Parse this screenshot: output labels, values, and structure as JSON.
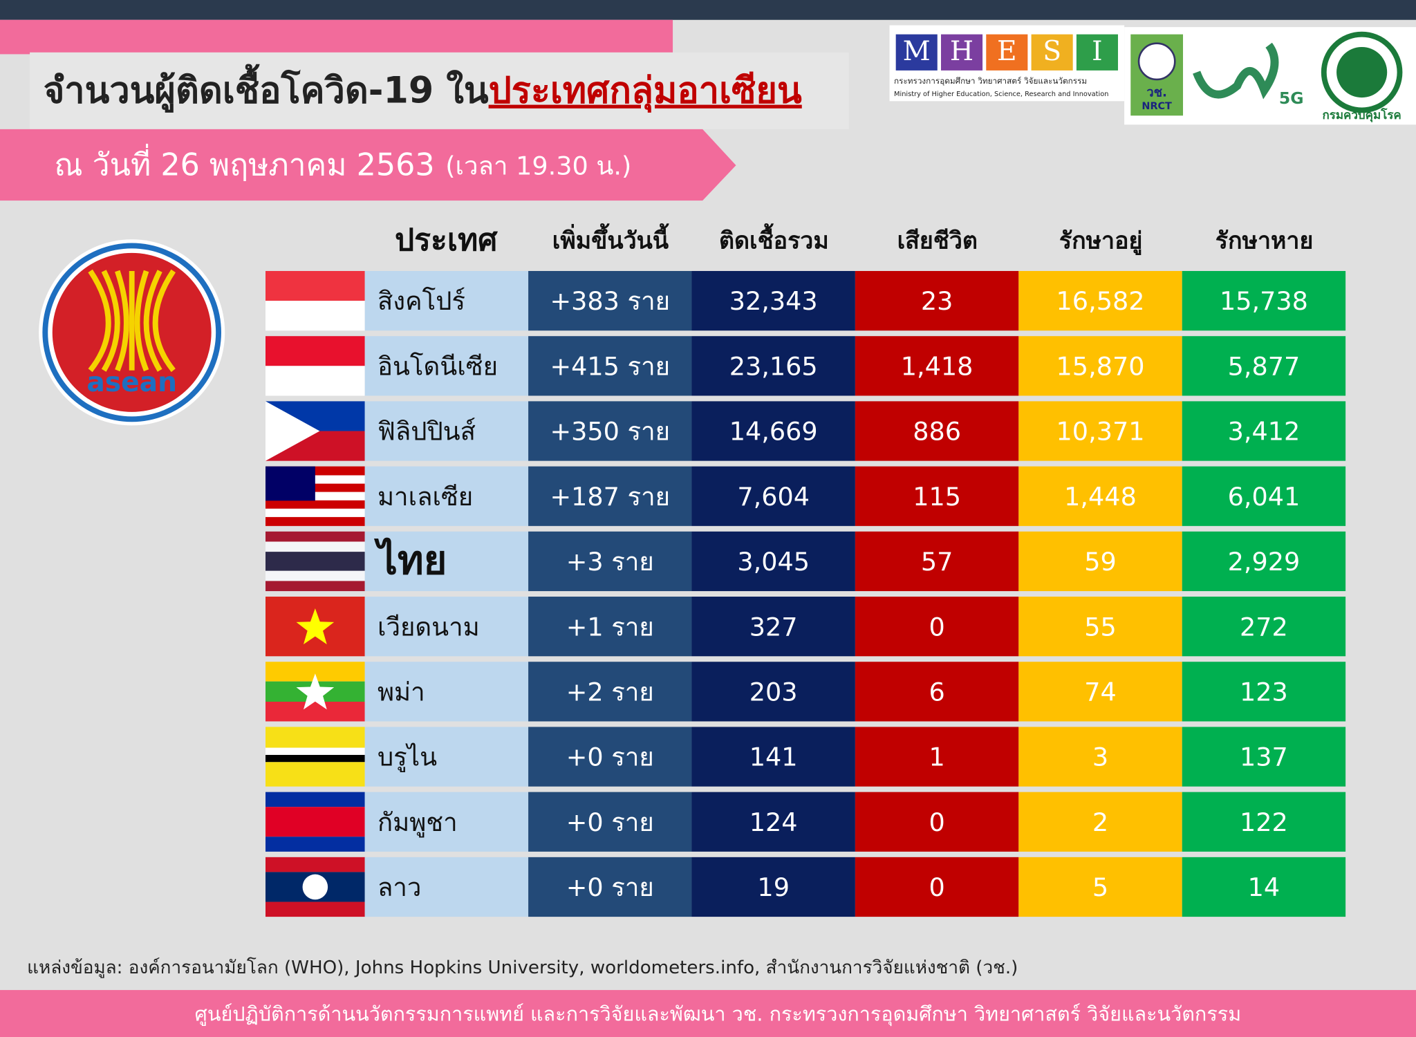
{
  "header": {
    "title": "จำนวนผู้ติดเชื้อโควิด-19 ใน",
    "title_highlight": "ประเทศกลุ่มอาเซียน",
    "date": "ณ วันที่ 26 พฤษภาคม 2563",
    "time": "(เวลา 19.30 น.)"
  },
  "logos": {
    "mhesi_letters": [
      "M",
      "H",
      "E",
      "S",
      "I"
    ],
    "mhesi_th": "กระทรวงการอุดมศึกษา วิทยาศาสตร์ วิจัยและนวัตกรรม",
    "mhesi_en": "Ministry of Higher Education, Science, Research and Innovation",
    "nrct_th": "วช.",
    "nrct_en": "NRCT",
    "fiveg": "5G",
    "ddc": "กรมควบคุมโรค",
    "asean": "asean"
  },
  "table": {
    "headers": [
      "ประเทศ",
      "เพิ่มขึ้นวันนี้",
      "ติดเชื้อรวม",
      "เสียชีวิต",
      "รักษาอยู่",
      "รักษาหาย"
    ],
    "rows": [
      [
        "สิงคโปร์",
        "+383 ราย",
        "32,343",
        "23",
        "16,582",
        "15,738"
      ],
      [
        "อินโดนีเซีย",
        "+415 ราย",
        "23,165",
        "1,418",
        "15,870",
        "5,877"
      ],
      [
        "ฟิลิปปินส์",
        "+350 ราย",
        "14,669",
        "886",
        "10,371",
        "3,412"
      ],
      [
        "มาเลเซีย",
        "+187 ราย",
        "7,604",
        "115",
        "1,448",
        "6,041"
      ],
      [
        "ไทย",
        "+3 ราย",
        "3,045",
        "57",
        "59",
        "2,929"
      ],
      [
        "เวียดนาม",
        "+1 ราย",
        "327",
        "0",
        "55",
        "272"
      ],
      [
        "พม่า",
        "+2 ราย",
        "203",
        "6",
        "74",
        "123"
      ],
      [
        "บรูไน",
        "+0 ราย",
        "141",
        "1",
        "3",
        "137"
      ],
      [
        "กัมพูชา",
        "+0 ราย",
        "124",
        "0",
        "2",
        "122"
      ],
      [
        "ลาว",
        "+0 ราย",
        "19",
        "0",
        "5",
        "14"
      ]
    ]
  },
  "source": "แหล่งข้อมูล: องค์การอนามัยโลก (WHO), Johns Hopkins University, worldometers.info, สำนักงานการวิจัยแห่งชาติ (วช.)",
  "footer": "ศูนย์ปฏิบัติการด้านนวัตกรรมการแพทย์ และการวิจัยและพัฒนา  วช.   กระทรวงการอุดมศึกษา วิทยาศาสตร์ วิจัยและนวัตกรรม"
}
